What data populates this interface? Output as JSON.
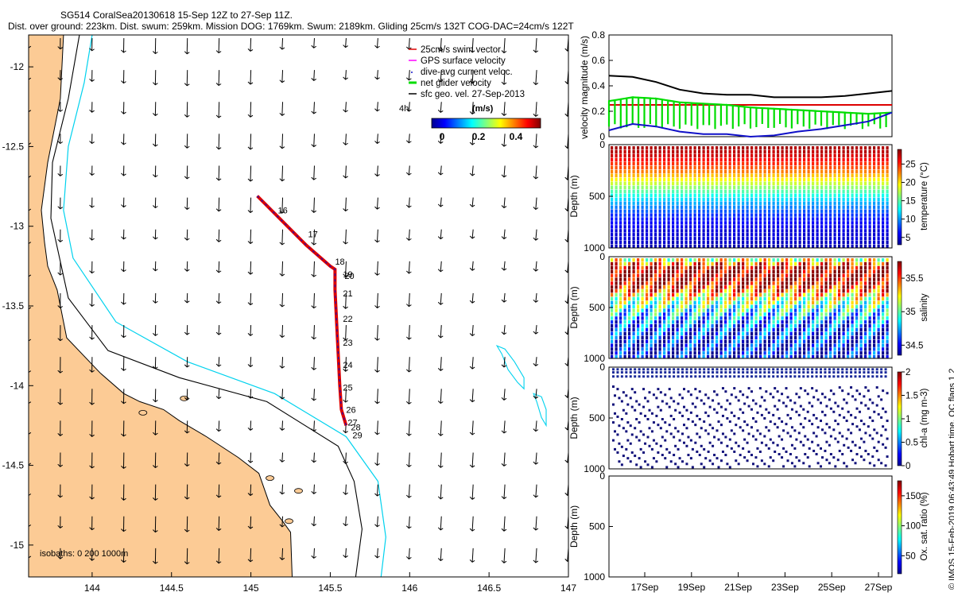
{
  "header": {
    "title_line1": "SG514 CoralSea20130618 15-Sep 12Z to 27-Sep 11Z.",
    "title_line2": "Dist. over ground: 223km. Dist. swum: 259km. Mission DOG: 1769km. Swum: 2189km. Gliding 25cm/s 132T COG-DAC=24cm/s 122T"
  },
  "credit": "© IMOS 15-Feb-2019 06:43:49 Hobart time. QC flags 1  2",
  "colors": {
    "land": "#fccb95",
    "coast": "#000000",
    "isobath_200": "#000000",
    "isobath_1000": "#00d2ee",
    "track": "#dd0000",
    "dac": "#1010c8",
    "net": "#00dd00",
    "surface": "#ff00ff",
    "black": "#000000"
  },
  "chart_data": [
    {
      "type": "map",
      "xlim": [
        143.6,
        147.0
      ],
      "ylim": [
        -15.2,
        -11.8
      ],
      "xticks": [
        "144",
        "144.5",
        "145",
        "145.5",
        "146",
        "146.5",
        "147"
      ],
      "yticks": [
        "-12",
        "-12.5",
        "-13",
        "-13.5",
        "-14",
        "-14.5",
        "-15"
      ],
      "legend": {
        "position": "top-right",
        "entries": [
          "25cm/s swim vector",
          "GPS surface velocity",
          "dive-avg current veloc.",
          "net glider velocity",
          "sfc geo. vel. 27-Sep-2013"
        ]
      },
      "time_label": "4h",
      "colorbar": {
        "label": "(m/s)",
        "ticks": [
          "0",
          "0.2",
          "0.4"
        ]
      },
      "isobath_label": "isobaths: 0   200  1000m",
      "track_labels": [
        {
          "t": "16",
          "lon": 145.14,
          "lat": -12.9
        },
        {
          "t": "17",
          "lon": 145.33,
          "lat": -13.05
        },
        {
          "t": "18",
          "lon": 145.5,
          "lat": -13.22
        },
        {
          "t": "19",
          "lon": 145.55,
          "lat": -13.3
        },
        {
          "t": "20",
          "lon": 145.56,
          "lat": -13.31
        },
        {
          "t": "21",
          "lon": 145.55,
          "lat": -13.42
        },
        {
          "t": "22",
          "lon": 145.55,
          "lat": -13.58
        },
        {
          "t": "23",
          "lon": 145.55,
          "lat": -13.73
        },
        {
          "t": "24",
          "lon": 145.55,
          "lat": -13.87
        },
        {
          "t": "25",
          "lon": 145.55,
          "lat": -14.01
        },
        {
          "t": "26",
          "lon": 145.57,
          "lat": -14.15
        },
        {
          "t": "27",
          "lon": 145.58,
          "lat": -14.23
        },
        {
          "t": "28",
          "lon": 145.6,
          "lat": -14.26
        },
        {
          "t": "29",
          "lon": 145.61,
          "lat": -14.31
        }
      ],
      "track": [
        [
          145.04,
          -12.81
        ],
        [
          145.2,
          -12.97
        ],
        [
          145.35,
          -13.12
        ],
        [
          145.5,
          -13.25
        ],
        [
          145.53,
          -13.27
        ],
        [
          145.53,
          -13.4
        ],
        [
          145.54,
          -13.6
        ],
        [
          145.55,
          -13.8
        ],
        [
          145.56,
          -14.0
        ],
        [
          145.57,
          -14.15
        ],
        [
          145.6,
          -14.25
        ]
      ],
      "coastline": [
        [
          143.82,
          -11.8
        ],
        [
          143.8,
          -12.2
        ],
        [
          143.72,
          -12.6
        ],
        [
          143.68,
          -12.9
        ],
        [
          143.7,
          -13.1
        ],
        [
          143.72,
          -13.25
        ],
        [
          143.78,
          -13.4
        ],
        [
          143.84,
          -13.7
        ],
        [
          144.05,
          -13.92
        ],
        [
          144.2,
          -14.05
        ],
        [
          144.3,
          -14.1
        ],
        [
          144.45,
          -14.15
        ],
        [
          144.55,
          -14.22
        ],
        [
          144.72,
          -14.32
        ],
        [
          144.92,
          -14.45
        ],
        [
          145.05,
          -14.55
        ],
        [
          145.12,
          -14.75
        ],
        [
          145.2,
          -14.85
        ],
        [
          145.25,
          -14.92
        ],
        [
          145.26,
          -15.2
        ]
      ],
      "isobath_200": [
        [
          143.92,
          -11.8
        ],
        [
          143.85,
          -12.2
        ],
        [
          143.75,
          -12.6
        ],
        [
          143.74,
          -12.95
        ],
        [
          143.85,
          -13.45
        ],
        [
          144.1,
          -13.78
        ],
        [
          144.55,
          -13.95
        ],
        [
          145.1,
          -14.1
        ],
        [
          145.55,
          -14.38
        ],
        [
          145.65,
          -14.6
        ],
        [
          145.7,
          -14.9
        ],
        [
          145.66,
          -15.2
        ]
      ],
      "isobath_1000": [
        [
          144.0,
          -11.8
        ],
        [
          143.95,
          -12.1
        ],
        [
          143.85,
          -12.5
        ],
        [
          143.82,
          -12.9
        ],
        [
          143.88,
          -13.2
        ],
        [
          144.15,
          -13.6
        ],
        [
          144.6,
          -13.85
        ],
        [
          145.15,
          -14.05
        ],
        [
          145.6,
          -14.32
        ],
        [
          145.8,
          -14.6
        ],
        [
          145.85,
          -14.95
        ],
        [
          145.82,
          -15.2
        ]
      ],
      "reefs_1000": [
        [
          [
            146.55,
            -13.75
          ],
          [
            146.58,
            -13.8
          ],
          [
            146.62,
            -13.9
          ],
          [
            146.68,
            -13.98
          ],
          [
            146.72,
            -14.02
          ],
          [
            146.72,
            -13.95
          ],
          [
            146.66,
            -13.85
          ],
          [
            146.6,
            -13.77
          ]
        ],
        [
          [
            146.78,
            -14.05
          ],
          [
            146.8,
            -14.1
          ],
          [
            146.83,
            -14.2
          ],
          [
            146.86,
            -14.25
          ],
          [
            146.86,
            -14.15
          ],
          [
            146.83,
            -14.07
          ]
        ]
      ],
      "vector_grid": {
        "lon_start": 143.6,
        "lon_step": 0.2,
        "lat_start": -11.82,
        "lat_step": 0.2
      }
    },
    {
      "type": "line",
      "ylabel": "velocity magnitude (m/s)",
      "ylim": [
        0,
        0.8
      ],
      "yticks": [
        "0",
        "0.2",
        "0.4",
        "0.6",
        "0.8"
      ],
      "x": [
        0,
        1,
        2,
        3,
        4,
        5,
        6,
        7,
        8,
        9,
        10,
        11,
        12
      ],
      "series": [
        {
          "color": "#000000",
          "values": [
            0.48,
            0.47,
            0.43,
            0.37,
            0.34,
            0.33,
            0.33,
            0.31,
            0.31,
            0.31,
            0.32,
            0.34,
            0.36
          ]
        },
        {
          "color": "#dd0000",
          "values": [
            0.25,
            0.25,
            0.25,
            0.25,
            0.25,
            0.25,
            0.25,
            0.25,
            0.25,
            0.25,
            0.25,
            0.25,
            0.25
          ]
        },
        {
          "color": "#00dd00",
          "values": [
            0.28,
            0.31,
            0.3,
            0.27,
            0.26,
            0.25,
            0.23,
            0.22,
            0.21,
            0.2,
            0.19,
            0.18,
            0.19
          ]
        },
        {
          "color": "#1010c8",
          "values": [
            0.05,
            0.1,
            0.08,
            0.04,
            0.02,
            0.02,
            0.0,
            0.01,
            0.04,
            0.06,
            0.09,
            0.12,
            0.19
          ]
        }
      ]
    },
    {
      "type": "heatmap",
      "ylabel": "Depth (m)",
      "yticks": [
        "0",
        "500",
        "1000"
      ],
      "colorbar_label": "temperature (°C)",
      "colorbar_ticks": [
        "5",
        "10",
        "15",
        "20",
        "25"
      ],
      "clim": [
        3,
        29
      ],
      "profile": [
        28,
        27,
        25,
        23,
        20,
        17,
        14,
        11,
        9,
        7,
        6,
        5,
        5,
        4
      ]
    },
    {
      "type": "heatmap",
      "ylabel": "Depth (m)",
      "yticks": [
        "0",
        "500",
        "1000"
      ],
      "colorbar_label": "salinity",
      "colorbar_ticks": [
        "34.5",
        "35",
        "35.5"
      ],
      "clim": [
        34.35,
        35.75
      ],
      "profile": [
        35.2,
        35.7,
        35.75,
        35.7,
        35.5,
        35.2,
        35.0,
        34.85,
        34.7,
        34.6,
        34.55,
        34.5,
        34.48,
        34.48
      ]
    },
    {
      "type": "scatter",
      "ylabel": "Depth (m)",
      "yticks": [
        "0",
        "500",
        "1000"
      ],
      "colorbar_label": "chl-a (mg m-3)",
      "colorbar_ticks": [
        "0",
        "0.5",
        "1",
        "1.5",
        "2"
      ],
      "clim": [
        0,
        2
      ]
    },
    {
      "type": "heatmap",
      "ylabel": "Depth (m)",
      "yticks": [
        "0",
        "500",
        "1000"
      ],
      "colorbar_label": "Ox. sat. ratio (%)",
      "colorbar_ticks": [
        "50",
        "100",
        "150"
      ],
      "clim": [
        20,
        175
      ],
      "xticks": [
        "17Sep",
        "19Sep",
        "21Sep",
        "23Sep",
        "25Sep",
        "27Sep"
      ]
    }
  ]
}
